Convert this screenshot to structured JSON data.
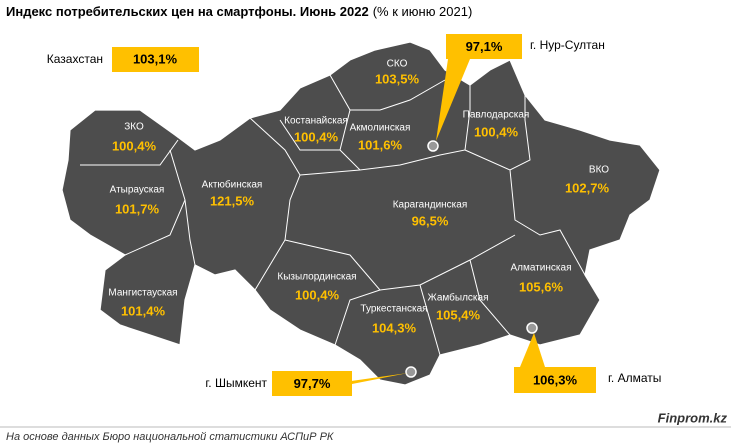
{
  "header": {
    "title": "Индекс потребительских цен на смартфоны. Июнь 2022",
    "subtitle": "(% к июню 2021)"
  },
  "country": {
    "name": "Казахстан",
    "value": "103,1%"
  },
  "regions": [
    {
      "name": "ЗКО",
      "value": "100,4%"
    },
    {
      "name": "Атырауская",
      "value": "101,7%"
    },
    {
      "name": "Мангистауская",
      "value": "101,4%"
    },
    {
      "name": "Актюбинская",
      "value": "121,5%"
    },
    {
      "name": "Костанайская",
      "value": "100,4%"
    },
    {
      "name": "СКО",
      "value": "103,5%"
    },
    {
      "name": "Акмолинская",
      "value": "101,6%"
    },
    {
      "name": "Павлодарская",
      "value": "100,4%"
    },
    {
      "name": "ВКО",
      "value": "102,7%"
    },
    {
      "name": "Карагандинская",
      "value": "96,5%"
    },
    {
      "name": "Кызылординская",
      "value": "100,4%"
    },
    {
      "name": "Туркестанская",
      "value": "104,3%"
    },
    {
      "name": "Жамбылская",
      "value": "105,4%"
    },
    {
      "name": "Алматинская",
      "value": "105,6%"
    }
  ],
  "cities": [
    {
      "name": "г. Нур-Султан",
      "value": "97,1%"
    },
    {
      "name": "г. Шымкент",
      "value": "97,7%"
    },
    {
      "name": "г. Алматы",
      "value": "106,3%"
    }
  ],
  "footer": {
    "source": "На основе данных Бюро национальной статистики АСПиР РК",
    "brand": "Finprom.kz"
  }
}
